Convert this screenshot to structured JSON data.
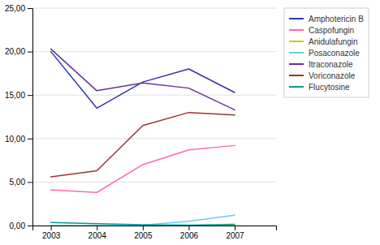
{
  "chart_data": {
    "type": "line",
    "x": [
      2003,
      2004,
      2005,
      2006,
      2007
    ],
    "series": [
      {
        "name": "Amphotericin B",
        "color": "#3333AA",
        "values": [
          20.0,
          13.5,
          16.5,
          18.0,
          15.3
        ]
      },
      {
        "name": "Caspofungin",
        "color": "#FF69B4",
        "values": [
          4.1,
          3.8,
          7.0,
          8.7,
          9.2
        ]
      },
      {
        "name": "Anidulafungin",
        "color": "#CCCC00",
        "values": [
          0.0,
          0.0,
          0.0,
          0.0,
          0.05
        ]
      },
      {
        "name": "Posaconazole",
        "color": "#66CCEE",
        "values": [
          0.0,
          0.0,
          0.05,
          0.5,
          1.2
        ]
      },
      {
        "name": "Itraconazole",
        "color": "#663399",
        "values": [
          20.3,
          15.5,
          16.4,
          15.8,
          13.3
        ]
      },
      {
        "name": "Voriconazole",
        "color": "#993333",
        "values": [
          5.6,
          6.3,
          11.5,
          13.0,
          12.7
        ]
      },
      {
        "name": "Flucytosine",
        "color": "#009999",
        "values": [
          0.35,
          0.2,
          0.1,
          0.05,
          0.15
        ]
      }
    ],
    "xlim": [
      2002.6,
      2007.9
    ],
    "xticks": [
      2003,
      2004,
      2005,
      2006,
      2007
    ],
    "ylim": [
      0,
      25
    ],
    "yticks": [
      {
        "value": 0.0,
        "label": "0,00"
      },
      {
        "value": 5.0,
        "label": "5,00"
      },
      {
        "value": 10.0,
        "label": "10,00"
      },
      {
        "value": 15.0,
        "label": "15,00"
      },
      {
        "value": 20.0,
        "label": "20,00"
      },
      {
        "value": 25.0,
        "label": "25,00"
      }
    ],
    "grid": true,
    "legend": "upper right"
  }
}
